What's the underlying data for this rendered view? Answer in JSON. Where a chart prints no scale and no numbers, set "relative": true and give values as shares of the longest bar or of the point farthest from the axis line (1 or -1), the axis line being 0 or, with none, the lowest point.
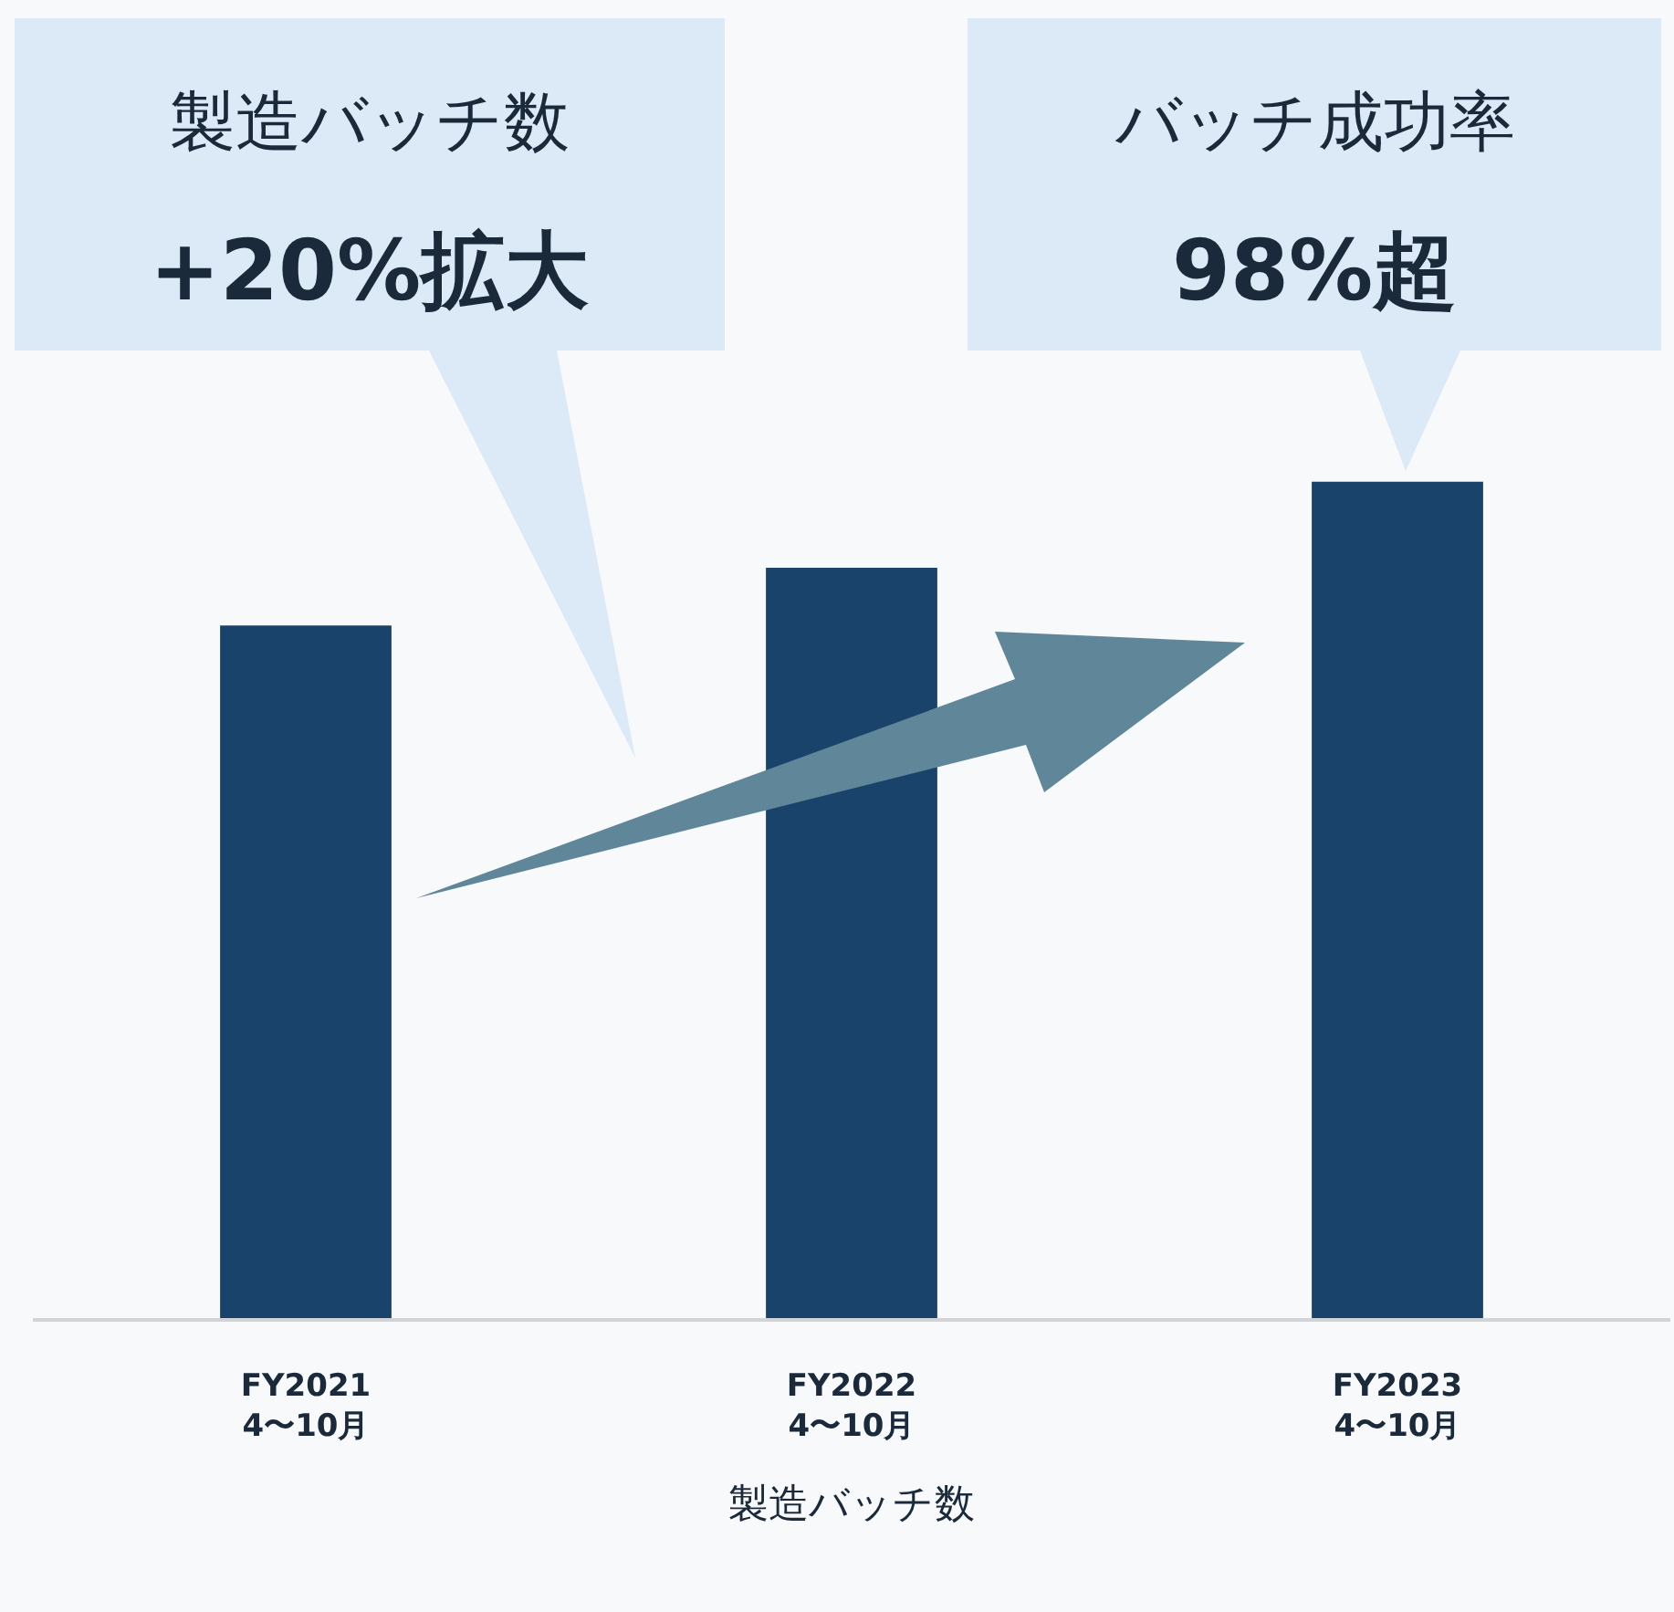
{
  "chart_data": {
    "type": "bar",
    "relative": true,
    "categories": [
      "FY2021\n4〜10月",
      "FY2022\n4〜10月",
      "FY2023\n4〜10月"
    ],
    "values": [
      0.828,
      0.897,
      1.0
    ],
    "color": "#1a436c",
    "xlabel": "製造バッチ数",
    "annotations": [
      "製造バッチ数\n+20%拡大",
      "バッチ成功率\n98%超"
    ],
    "grid": false,
    "legend": false
  }
}
